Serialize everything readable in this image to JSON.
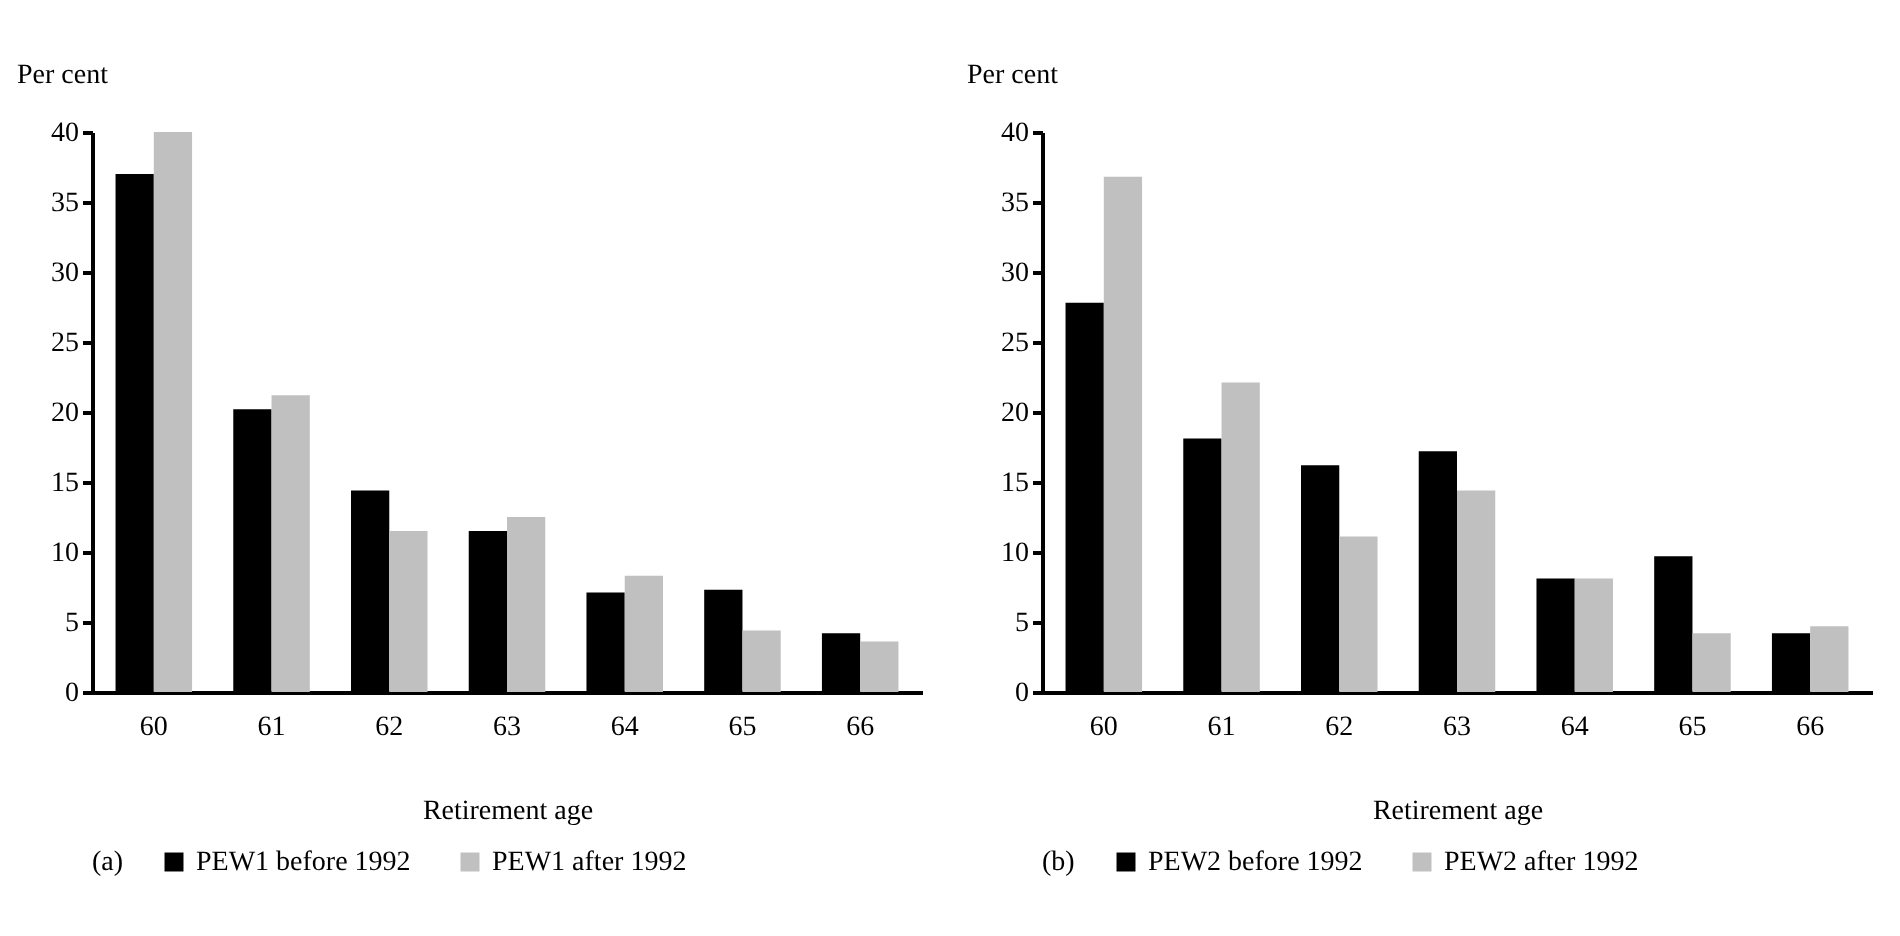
{
  "chart_data": [
    {
      "type": "bar",
      "ylabel": "Per cent",
      "xlabel": "Retirement age",
      "legend_title": "(a)",
      "legend": "bottom",
      "categories": [
        "60",
        "61",
        "62",
        "63",
        "64",
        "65",
        "66"
      ],
      "ylim": [
        0,
        40
      ],
      "yticks": [
        0,
        5,
        10,
        15,
        20,
        25,
        30,
        35,
        40
      ],
      "series": [
        {
          "name": "PEW1 before 1992",
          "color": "#000000",
          "values": [
            37,
            20.2,
            14.4,
            11.5,
            7.1,
            7.3,
            4.2
          ]
        },
        {
          "name": "PEW1 after 1992",
          "color": "#c0c0c0",
          "values": [
            40,
            21.2,
            11.5,
            12.5,
            8.3,
            4.4,
            3.6
          ]
        }
      ]
    },
    {
      "type": "bar",
      "ylabel": "Per cent",
      "xlabel": "Retirement age",
      "legend_title": "(b)",
      "legend": "bottom",
      "categories": [
        "60",
        "61",
        "62",
        "63",
        "64",
        "65",
        "66"
      ],
      "ylim": [
        0,
        40
      ],
      "yticks": [
        0,
        5,
        10,
        15,
        20,
        25,
        30,
        35,
        40
      ],
      "series": [
        {
          "name": "PEW2 before 1992",
          "color": "#000000",
          "values": [
            27.8,
            18.1,
            16.2,
            17.2,
            8.1,
            9.7,
            4.2
          ]
        },
        {
          "name": "PEW2 after 1992",
          "color": "#c0c0c0",
          "values": [
            36.8,
            22.1,
            11.1,
            14.4,
            8.1,
            4.2,
            4.7
          ]
        }
      ]
    }
  ]
}
